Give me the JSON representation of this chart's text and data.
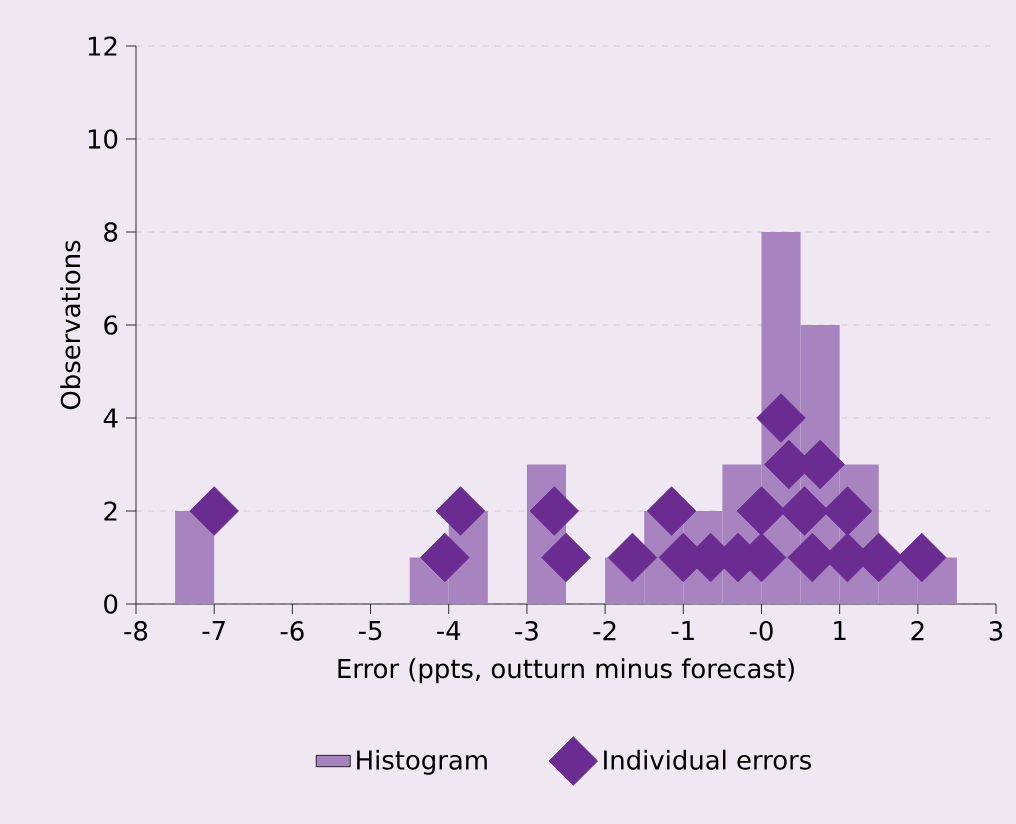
{
  "chart_data": {
    "type": "histogram",
    "xlabel": "Error (ppts, outturn minus forecast)",
    "ylabel": "Observations",
    "xlim": [
      -8,
      3
    ],
    "ylim": [
      0,
      12
    ],
    "xticks": [
      -8,
      -7,
      -6,
      -5,
      -4,
      -3,
      -2,
      -1,
      {
        "value": 0,
        "label": "-0"
      },
      1,
      2,
      3
    ],
    "yticks": [
      0,
      2,
      4,
      6,
      8,
      10,
      12
    ],
    "grid": "y",
    "legend": "bottom",
    "series": [
      {
        "name": "Histogram",
        "color": "#a783bf",
        "bins": [
          -7.5,
          -7,
          -6.5,
          -6,
          -5.5,
          -5,
          -4.5,
          -4,
          -3.5,
          -3,
          -2.5,
          -2,
          -1.5,
          -1,
          -0.5,
          0,
          0.5,
          1,
          1.5,
          2,
          2.5
        ],
        "values": [
          2,
          0,
          0,
          0,
          0,
          0,
          1,
          2,
          0,
          3,
          0,
          1,
          2,
          2,
          3,
          8,
          6,
          3,
          1,
          1
        ]
      },
      {
        "name": "Individual errors",
        "type": "scatter",
        "color": "#6a2c91",
        "marker": "diamond",
        "x": [
          -7.0,
          -4.05,
          -3.85,
          -2.65,
          -2.5,
          -1.65,
          -1.15,
          -1.0,
          -0.65,
          -0.3,
          0.0,
          0.0,
          0.25,
          0.35,
          0.55,
          0.65,
          0.75,
          1.1,
          1.1,
          1.5,
          2.05
        ],
        "values": [
          2,
          1,
          2,
          2,
          1,
          1,
          2,
          1,
          1,
          1,
          1,
          2,
          4,
          3,
          2,
          1,
          3,
          2,
          1,
          1,
          1
        ]
      }
    ]
  }
}
